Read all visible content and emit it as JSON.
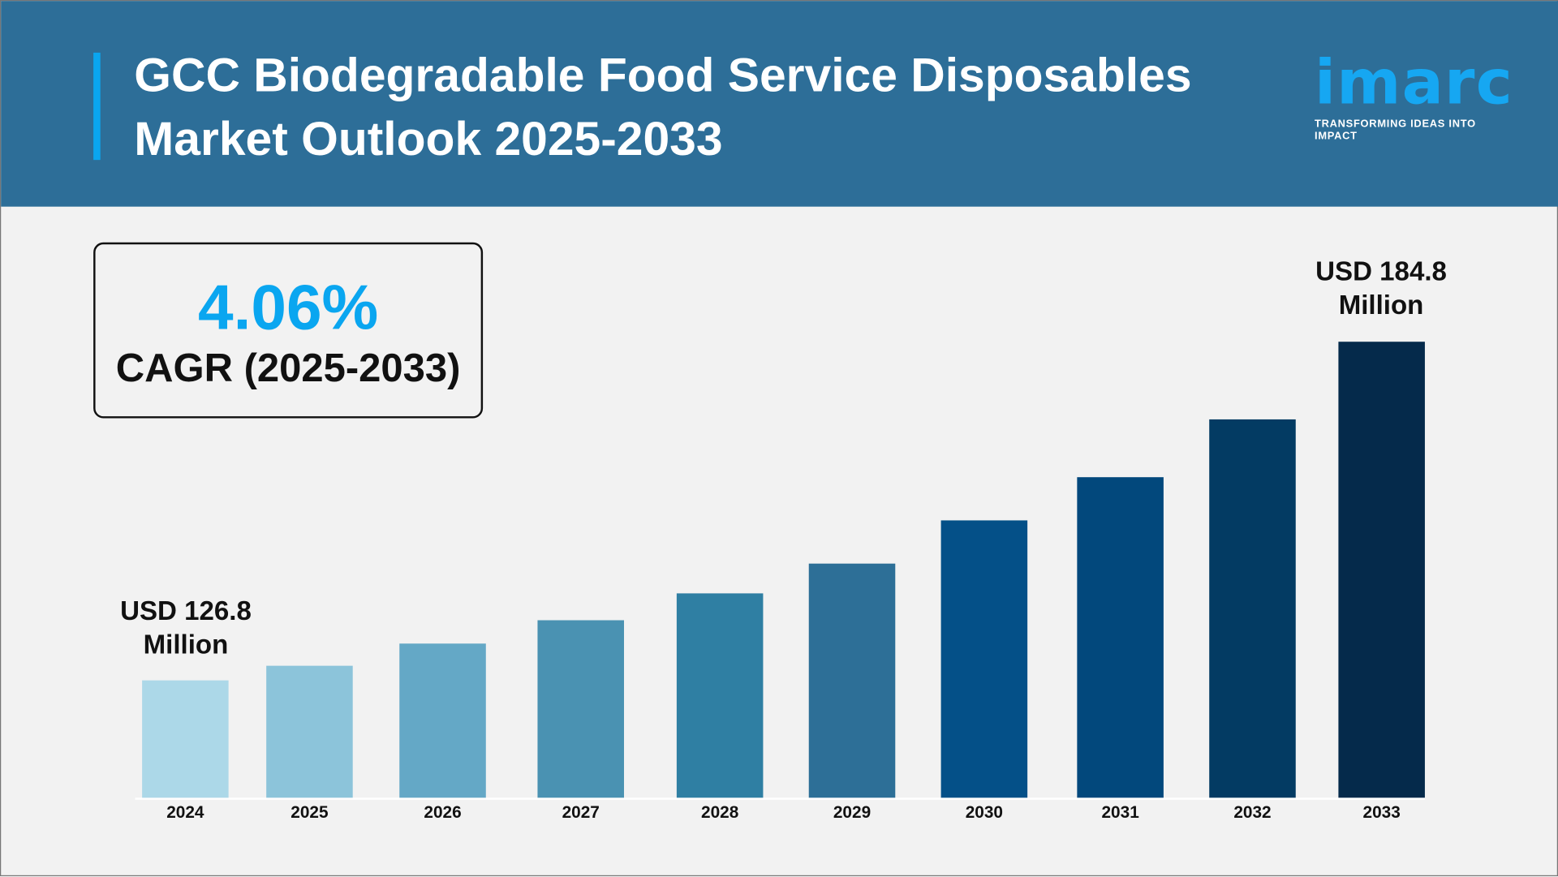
{
  "header": {
    "title_line1": "GCC Biodegradable Food Service Disposables",
    "title_line2": "Market Outlook 2025-2033",
    "logo_text": "imarc",
    "logo_tagline": "TRANSFORMING IDEAS INTO IMPACT"
  },
  "cagr": {
    "value": "4.06%",
    "label": "CAGR (2025-2033)"
  },
  "colors": {
    "header_bg": "#2d6e98",
    "accent": "#0aa6f0",
    "background": "#f2f2f2"
  },
  "chart_data": {
    "type": "bar",
    "title": "GCC Biodegradable Food Service Disposables Market Outlook 2025-2033",
    "categories": [
      "2024",
      "2025",
      "2026",
      "2027",
      "2028",
      "2029",
      "2030",
      "2031",
      "2032",
      "2033"
    ],
    "values": [
      126.8,
      129.3,
      133.1,
      137.1,
      141.7,
      146.8,
      154.2,
      161.6,
      171.5,
      184.8
    ],
    "bar_colors": [
      "#acd8e8",
      "#8cc4da",
      "#64a8c6",
      "#4a92b2",
      "#2f7fa3",
      "#2d6f97",
      "#045088",
      "#02487c",
      "#033b63",
      "#052a4b"
    ],
    "annotations": [
      {
        "category": "2024",
        "line1": "USD 126.8",
        "line2": "Million"
      },
      {
        "category": "2033",
        "line1": "USD 184.8",
        "line2": "Million"
      }
    ],
    "unit": "USD Million",
    "grid": false,
    "legend": "none"
  }
}
